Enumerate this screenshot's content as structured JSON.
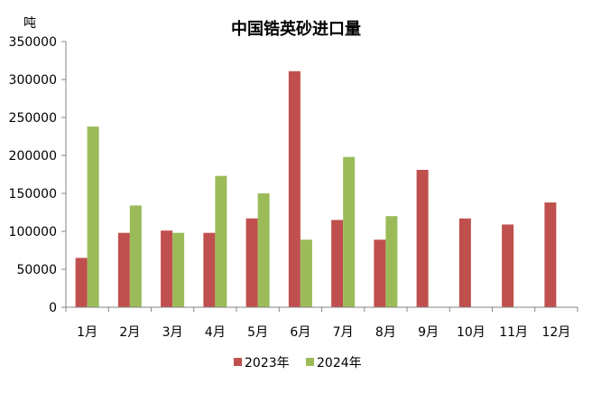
{
  "chart_data": {
    "type": "bar",
    "title": "中国锆英砂进口量",
    "unit_label": "吨",
    "categories": [
      "1月",
      "2月",
      "3月",
      "4月",
      "5月",
      "6月",
      "7月",
      "8月",
      "9月",
      "10月",
      "11月",
      "12月"
    ],
    "ylim": [
      0,
      350000
    ],
    "y_ticks": [
      "0",
      "50000",
      "100000",
      "150000",
      "200000",
      "250000",
      "300000",
      "350000"
    ],
    "y_tick_values": [
      0,
      50000,
      100000,
      150000,
      200000,
      250000,
      300000,
      350000
    ],
    "grid": false,
    "legend_position": "bottom",
    "series": [
      {
        "name": "2023年",
        "color": "#c0504d",
        "values": [
          65000,
          98000,
          101000,
          98000,
          117000,
          311000,
          115000,
          89000,
          181000,
          117000,
          109000,
          138000
        ]
      },
      {
        "name": "2024年",
        "color": "#9bbb59",
        "values": [
          238000,
          134000,
          98000,
          173000,
          150000,
          89000,
          198000,
          120000,
          null,
          null,
          null,
          null
        ]
      }
    ]
  }
}
